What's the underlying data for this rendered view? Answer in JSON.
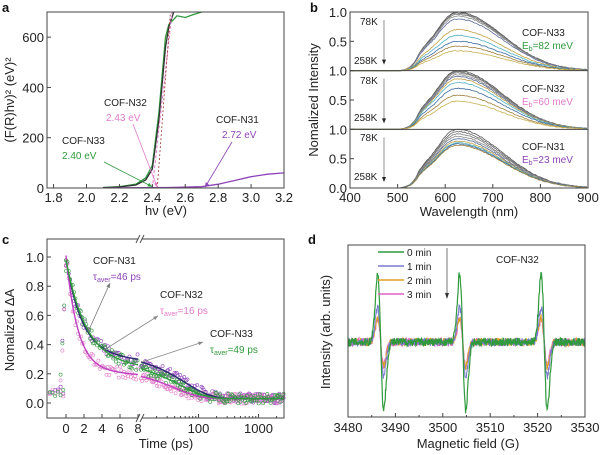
{
  "colors": {
    "green": "#2f9a3c",
    "purple": "#8e44b8",
    "pink": "#e27bcb",
    "navy": "#2b2a6e",
    "dark": "#333333"
  },
  "chart_data": [
    {
      "panel": "a",
      "type": "line",
      "xlabel": "hν (eV)",
      "ylabel": "(F(R)hν)² (eV)²",
      "xlim": [
        1.76,
        3.2
      ],
      "ylim": [
        0,
        700
      ],
      "xticks": [
        "1.8",
        "2.0",
        "2.2",
        "2.4",
        "2.6",
        "2.8",
        "3.0",
        "3.2"
      ],
      "yticks": [
        "0",
        "200",
        "400",
        "600"
      ],
      "series": [
        {
          "name": "COF-N33",
          "value": "2.40 eV",
          "points": [
            [
              2.1,
              2
            ],
            [
              2.2,
              5
            ],
            [
              2.3,
              15
            ],
            [
              2.36,
              40
            ],
            [
              2.4,
              90
            ],
            [
              2.44,
              300
            ],
            [
              2.48,
              600
            ],
            [
              2.5,
              650
            ],
            [
              2.55,
              685
            ],
            [
              2.6,
              678
            ],
            [
              2.65,
              690
            ],
            [
              2.7,
              700
            ]
          ]
        },
        {
          "name": "COF-N32",
          "value": "2.43 eV",
          "points": [
            [
              2.1,
              1
            ],
            [
              2.2,
              4
            ],
            [
              2.3,
              12
            ],
            [
              2.36,
              32
            ],
            [
              2.4,
              75
            ],
            [
              2.44,
              270
            ],
            [
              2.48,
              560
            ],
            [
              2.5,
              640
            ],
            [
              2.53,
              700
            ]
          ]
        },
        {
          "name": "COF-N31",
          "value": "2.72 eV",
          "points": [
            [
              2.1,
              0
            ],
            [
              2.5,
              2
            ],
            [
              2.7,
              5
            ],
            [
              2.8,
              15
            ],
            [
              2.9,
              30
            ],
            [
              3.0,
              45
            ],
            [
              3.1,
              55
            ],
            [
              3.2,
              60
            ]
          ]
        }
      ]
    },
    {
      "panel": "b",
      "type": "line",
      "xlabel": "Wavelength (nm)",
      "ylabel": "Nomalized Intensity",
      "xlim": [
        400,
        900
      ],
      "ylim": [
        0,
        1.0
      ],
      "xticks": [
        "400",
        "500",
        "600",
        "700",
        "800",
        "900"
      ],
      "yticks_top": [
        "0.5",
        "1.0"
      ],
      "yticks_mid": [
        "0.5",
        "1.0"
      ],
      "yticks_bot": [
        "0.0",
        "0.5",
        "1.0"
      ],
      "temp_high": "78K",
      "temp_low": "258K",
      "subpanels": [
        {
          "name": "COF-N33",
          "eb_sym": "E",
          "eb_sub": "b",
          "eb_val": "=82 meV",
          "peak_amplitudes": [
            1.0,
            0.98,
            0.96,
            0.93,
            0.88,
            0.7,
            0.6,
            0.5,
            0.42,
            0.34
          ]
        },
        {
          "name": "COF-N32",
          "eb_sym": "E",
          "eb_sub": "b",
          "eb_val": "=60 meV",
          "peak_amplitudes": [
            1.0,
            0.98,
            0.96,
            0.93,
            0.9,
            0.86,
            0.8,
            0.7,
            0.58,
            0.48
          ]
        },
        {
          "name": "COF-N31",
          "eb_sym": "E",
          "eb_sub": "b",
          "eb_val": "=23 meV",
          "peak_amplitudes": [
            1.0,
            0.96,
            0.92,
            0.88,
            0.84,
            0.8,
            0.77,
            0.75,
            0.73
          ]
        }
      ]
    },
    {
      "panel": "c",
      "type": "scatter",
      "xlabel": "Time (ps)",
      "ylabel": "Nomalized ΔA",
      "xscale": "linear to 8 ps, then log (broken axis)",
      "ylim": [
        -0.1,
        1.12
      ],
      "xticks": [
        "0",
        "2",
        "4",
        "6",
        "8",
        "100",
        "1000"
      ],
      "yticks": [
        "0.0",
        "0.2",
        "0.4",
        "0.6",
        "0.8",
        "1.0"
      ],
      "series": [
        {
          "name": "COF-N31",
          "tau_sym": "τ",
          "tau_sub": "aver",
          "tau_val": "=46 ps"
        },
        {
          "name": "COF-N32",
          "tau_sym": "τ",
          "tau_sub": "aver",
          "tau_val": "=16 ps"
        },
        {
          "name": "COF-N33",
          "tau_sym": "τ",
          "tau_sub": "aver",
          "tau_val": "=49 ps"
        }
      ]
    },
    {
      "panel": "d",
      "type": "line",
      "title": "COF-N32",
      "xlabel": "Magnetic field (G)",
      "ylabel": "Intensity (arb. units)",
      "xlim": [
        3480,
        3530
      ],
      "xticks": [
        "3480",
        "3490",
        "3500",
        "3510",
        "3520",
        "3530"
      ],
      "line_centers_G": [
        3486.9,
        3504.2,
        3521.4
      ],
      "legend": [
        {
          "name": "0 min",
          "relative_intensity": 1.0
        },
        {
          "name": "1 min",
          "relative_intensity": 0.5
        },
        {
          "name": "2 min",
          "relative_intensity": 0.36
        },
        {
          "name": "3 min",
          "relative_intensity": 0.33
        }
      ],
      "legend_placement": "top-left"
    }
  ],
  "panel_labels": [
    "a",
    "b",
    "c",
    "d"
  ]
}
